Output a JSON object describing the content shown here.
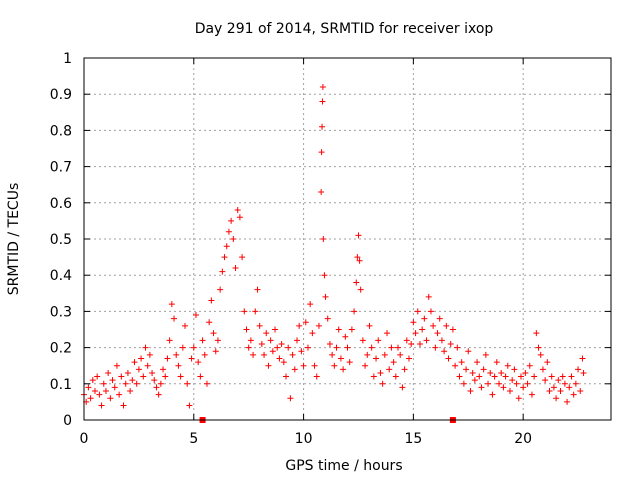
{
  "chart_data": {
    "type": "scatter",
    "title": "Day 291 of 2014, SRMTID for receiver ixop",
    "xlabel": "GPS time / hours",
    "ylabel": "SRMTID / TECUs",
    "xlim": [
      0,
      24
    ],
    "ylim": [
      0,
      1
    ],
    "xticks": [
      0,
      5,
      10,
      15,
      20
    ],
    "xtick_labels": [
      "0",
      "5",
      "10",
      "15",
      "20"
    ],
    "yticks": [
      0,
      0.1,
      0.2,
      0.3,
      0.4,
      0.5,
      0.6,
      0.7,
      0.8,
      0.9,
      1
    ],
    "ytick_labels": [
      "0",
      "0.1",
      "0.2",
      "0.3",
      "0.4",
      "0.5",
      "0.6",
      "0.7",
      "0.8",
      "0.9",
      "1"
    ],
    "grid": true,
    "marker": "plus",
    "color": "#ff0000",
    "series": [
      {
        "name": "SRMTID",
        "points": [
          [
            0.0,
            0.07
          ],
          [
            0.1,
            0.05
          ],
          [
            0.2,
            0.09
          ],
          [
            0.3,
            0.06
          ],
          [
            0.4,
            0.11
          ],
          [
            0.5,
            0.08
          ],
          [
            0.6,
            0.12
          ],
          [
            0.7,
            0.07
          ],
          [
            0.8,
            0.04
          ],
          [
            0.9,
            0.1
          ],
          [
            1.0,
            0.08
          ],
          [
            1.1,
            0.13
          ],
          [
            1.2,
            0.06
          ],
          [
            1.3,
            0.11
          ],
          [
            1.4,
            0.09
          ],
          [
            1.5,
            0.15
          ],
          [
            1.6,
            0.07
          ],
          [
            1.7,
            0.12
          ],
          [
            1.8,
            0.04
          ],
          [
            1.9,
            0.1
          ],
          [
            2.0,
            0.13
          ],
          [
            2.1,
            0.08
          ],
          [
            2.2,
            0.11
          ],
          [
            2.3,
            0.16
          ],
          [
            2.4,
            0.1
          ],
          [
            2.5,
            0.14
          ],
          [
            2.6,
            0.17
          ],
          [
            2.7,
            0.12
          ],
          [
            2.8,
            0.2
          ],
          [
            2.9,
            0.15
          ],
          [
            3.0,
            0.18
          ],
          [
            3.1,
            0.13
          ],
          [
            3.2,
            0.11
          ],
          [
            3.3,
            0.09
          ],
          [
            3.4,
            0.07
          ],
          [
            3.5,
            0.1
          ],
          [
            3.6,
            0.14
          ],
          [
            3.7,
            0.12
          ],
          [
            3.8,
            0.17
          ],
          [
            3.9,
            0.22
          ],
          [
            4.0,
            0.32
          ],
          [
            4.1,
            0.28
          ],
          [
            4.2,
            0.18
          ],
          [
            4.3,
            0.15
          ],
          [
            4.4,
            0.12
          ],
          [
            4.5,
            0.2
          ],
          [
            4.6,
            0.26
          ],
          [
            4.7,
            0.1
          ],
          [
            4.8,
            0.04
          ],
          [
            4.9,
            0.17
          ],
          [
            5.0,
            0.2
          ],
          [
            5.1,
            0.29
          ],
          [
            5.2,
            0.16
          ],
          [
            5.3,
            0.12
          ],
          [
            5.4,
            0.22
          ],
          [
            5.5,
            0.18
          ],
          [
            5.6,
            0.1
          ],
          [
            5.7,
            0.27
          ],
          [
            5.8,
            0.33
          ],
          [
            5.9,
            0.24
          ],
          [
            6.0,
            0.19
          ],
          [
            6.1,
            0.22
          ],
          [
            6.2,
            0.36
          ],
          [
            6.3,
            0.41
          ],
          [
            6.4,
            0.45
          ],
          [
            6.5,
            0.48
          ],
          [
            6.6,
            0.52
          ],
          [
            6.7,
            0.55
          ],
          [
            6.8,
            0.5
          ],
          [
            6.9,
            0.42
          ],
          [
            7.0,
            0.58
          ],
          [
            7.1,
            0.56
          ],
          [
            7.2,
            0.45
          ],
          [
            7.3,
            0.3
          ],
          [
            7.4,
            0.25
          ],
          [
            7.5,
            0.2
          ],
          [
            7.6,
            0.22
          ],
          [
            7.7,
            0.18
          ],
          [
            7.8,
            0.3
          ],
          [
            7.9,
            0.36
          ],
          [
            8.0,
            0.26
          ],
          [
            8.1,
            0.21
          ],
          [
            8.2,
            0.18
          ],
          [
            8.3,
            0.24
          ],
          [
            8.4,
            0.15
          ],
          [
            8.5,
            0.22
          ],
          [
            8.6,
            0.19
          ],
          [
            8.7,
            0.25
          ],
          [
            8.8,
            0.2
          ],
          [
            8.9,
            0.17
          ],
          [
            9.0,
            0.21
          ],
          [
            9.1,
            0.16
          ],
          [
            9.2,
            0.12
          ],
          [
            9.3,
            0.2
          ],
          [
            9.4,
            0.06
          ],
          [
            9.5,
            0.18
          ],
          [
            9.6,
            0.14
          ],
          [
            9.7,
            0.22
          ],
          [
            9.8,
            0.26
          ],
          [
            9.9,
            0.19
          ],
          [
            10.0,
            0.15
          ],
          [
            10.1,
            0.27
          ],
          [
            10.2,
            0.2
          ],
          [
            10.3,
            0.32
          ],
          [
            10.4,
            0.24
          ],
          [
            10.5,
            0.15
          ],
          [
            10.6,
            0.12
          ],
          [
            10.7,
            0.26
          ],
          [
            10.8,
            0.63
          ],
          [
            10.82,
            0.74
          ],
          [
            10.84,
            0.81
          ],
          [
            10.86,
            0.88
          ],
          [
            10.88,
            0.92
          ],
          [
            10.9,
            0.5
          ],
          [
            10.95,
            0.4
          ],
          [
            11.0,
            0.34
          ],
          [
            11.1,
            0.28
          ],
          [
            11.2,
            0.21
          ],
          [
            11.3,
            0.18
          ],
          [
            11.4,
            0.15
          ],
          [
            11.5,
            0.2
          ],
          [
            11.6,
            0.25
          ],
          [
            11.7,
            0.17
          ],
          [
            11.8,
            0.14
          ],
          [
            11.9,
            0.23
          ],
          [
            12.0,
            0.2
          ],
          [
            12.1,
            0.16
          ],
          [
            12.2,
            0.25
          ],
          [
            12.3,
            0.3
          ],
          [
            12.4,
            0.38
          ],
          [
            12.45,
            0.45
          ],
          [
            12.5,
            0.51
          ],
          [
            12.55,
            0.44
          ],
          [
            12.6,
            0.36
          ],
          [
            12.7,
            0.22
          ],
          [
            12.8,
            0.15
          ],
          [
            12.9,
            0.18
          ],
          [
            13.0,
            0.26
          ],
          [
            13.1,
            0.2
          ],
          [
            13.2,
            0.12
          ],
          [
            13.3,
            0.17
          ],
          [
            13.4,
            0.22
          ],
          [
            13.5,
            0.13
          ],
          [
            13.6,
            0.1
          ],
          [
            13.7,
            0.18
          ],
          [
            13.8,
            0.24
          ],
          [
            13.9,
            0.14
          ],
          [
            14.0,
            0.2
          ],
          [
            14.1,
            0.16
          ],
          [
            14.2,
            0.12
          ],
          [
            14.3,
            0.2
          ],
          [
            14.4,
            0.18
          ],
          [
            14.5,
            0.09
          ],
          [
            14.6,
            0.14
          ],
          [
            14.7,
            0.22
          ],
          [
            14.8,
            0.17
          ],
          [
            14.9,
            0.21
          ],
          [
            15.0,
            0.27
          ],
          [
            15.1,
            0.24
          ],
          [
            15.2,
            0.3
          ],
          [
            15.3,
            0.21
          ],
          [
            15.4,
            0.25
          ],
          [
            15.5,
            0.28
          ],
          [
            15.6,
            0.22
          ],
          [
            15.7,
            0.34
          ],
          [
            15.8,
            0.3
          ],
          [
            15.9,
            0.26
          ],
          [
            16.0,
            0.2
          ],
          [
            16.1,
            0.24
          ],
          [
            16.2,
            0.28
          ],
          [
            16.3,
            0.22
          ],
          [
            16.4,
            0.19
          ],
          [
            16.5,
            0.26
          ],
          [
            16.6,
            0.17
          ],
          [
            16.7,
            0.21
          ],
          [
            16.8,
            0.25
          ],
          [
            16.9,
            0.15
          ],
          [
            17.0,
            0.2
          ],
          [
            17.1,
            0.12
          ],
          [
            17.2,
            0.16
          ],
          [
            17.3,
            0.1
          ],
          [
            17.4,
            0.14
          ],
          [
            17.5,
            0.19
          ],
          [
            17.6,
            0.08
          ],
          [
            17.7,
            0.13
          ],
          [
            17.8,
            0.11
          ],
          [
            17.9,
            0.16
          ],
          [
            18.0,
            0.12
          ],
          [
            18.1,
            0.09
          ],
          [
            18.2,
            0.14
          ],
          [
            18.3,
            0.18
          ],
          [
            18.4,
            0.1
          ],
          [
            18.5,
            0.13
          ],
          [
            18.6,
            0.07
          ],
          [
            18.7,
            0.12
          ],
          [
            18.8,
            0.16
          ],
          [
            18.9,
            0.1
          ],
          [
            19.0,
            0.13
          ],
          [
            19.1,
            0.09
          ],
          [
            19.2,
            0.12
          ],
          [
            19.3,
            0.15
          ],
          [
            19.4,
            0.08
          ],
          [
            19.5,
            0.11
          ],
          [
            19.6,
            0.14
          ],
          [
            19.7,
            0.1
          ],
          [
            19.8,
            0.06
          ],
          [
            19.9,
            0.12
          ],
          [
            20.0,
            0.09
          ],
          [
            20.1,
            0.13
          ],
          [
            20.2,
            0.1
          ],
          [
            20.3,
            0.15
          ],
          [
            20.4,
            0.07
          ],
          [
            20.5,
            0.12
          ],
          [
            20.6,
            0.24
          ],
          [
            20.7,
            0.2
          ],
          [
            20.8,
            0.18
          ],
          [
            20.9,
            0.14
          ],
          [
            21.0,
            0.11
          ],
          [
            21.1,
            0.16
          ],
          [
            21.2,
            0.08
          ],
          [
            21.3,
            0.12
          ],
          [
            21.4,
            0.09
          ],
          [
            21.5,
            0.06
          ],
          [
            21.6,
            0.11
          ],
          [
            21.7,
            0.08
          ],
          [
            21.8,
            0.12
          ],
          [
            21.9,
            0.1
          ],
          [
            22.0,
            0.05
          ],
          [
            22.1,
            0.09
          ],
          [
            22.2,
            0.12
          ],
          [
            22.3,
            0.07
          ],
          [
            22.4,
            0.1
          ],
          [
            22.5,
            0.14
          ],
          [
            22.6,
            0.08
          ],
          [
            22.7,
            0.17
          ],
          [
            22.75,
            0.13
          ]
        ]
      }
    ],
    "x_axis_markers": [
      5.4,
      16.8
    ]
  }
}
